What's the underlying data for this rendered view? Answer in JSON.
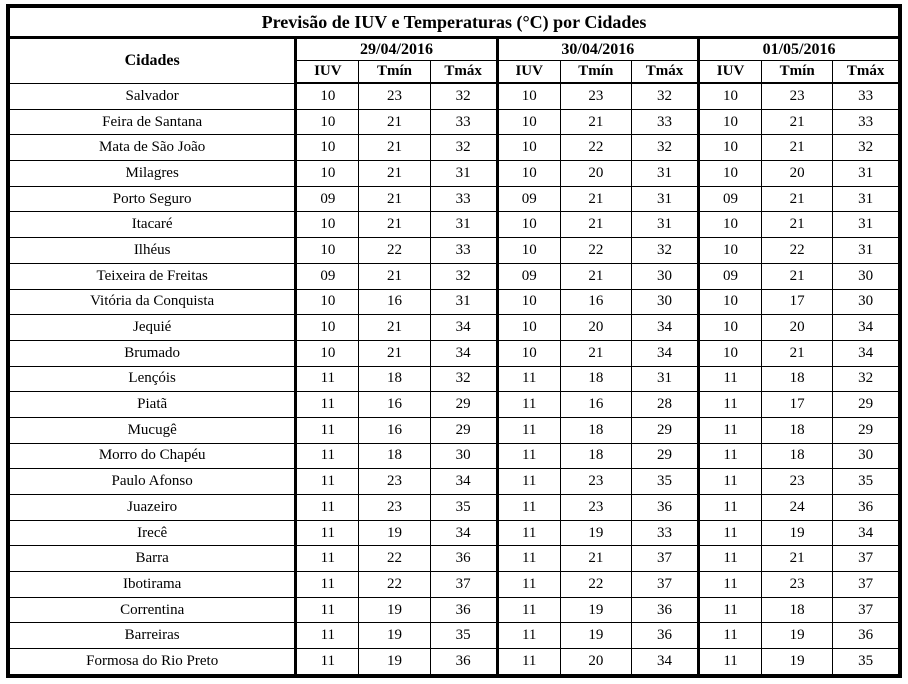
{
  "title": "Previsão de IUV e Temperaturas (°C) por Cidades",
  "columns": {
    "cidades": "Cidades",
    "dates": [
      "29/04/2016",
      "30/04/2016",
      "01/05/2016"
    ],
    "sub": [
      "IUV",
      "Tmín",
      "Tmáx"
    ]
  },
  "rows": [
    {
      "city": "Salvador",
      "values": [
        "10",
        "23",
        "32",
        "10",
        "23",
        "32",
        "10",
        "23",
        "33"
      ]
    },
    {
      "city": "Feira de Santana",
      "values": [
        "10",
        "21",
        "33",
        "10",
        "21",
        "33",
        "10",
        "21",
        "33"
      ]
    },
    {
      "city": "Mata de São João",
      "values": [
        "10",
        "21",
        "32",
        "10",
        "22",
        "32",
        "10",
        "21",
        "32"
      ]
    },
    {
      "city": "Milagres",
      "values": [
        "10",
        "21",
        "31",
        "10",
        "20",
        "31",
        "10",
        "20",
        "31"
      ]
    },
    {
      "city": "Porto Seguro",
      "values": [
        "09",
        "21",
        "33",
        "09",
        "21",
        "31",
        "09",
        "21",
        "31"
      ]
    },
    {
      "city": "Itacaré",
      "values": [
        "10",
        "21",
        "31",
        "10",
        "21",
        "31",
        "10",
        "21",
        "31"
      ]
    },
    {
      "city": "Ilhéus",
      "values": [
        "10",
        "22",
        "33",
        "10",
        "22",
        "32",
        "10",
        "22",
        "31"
      ]
    },
    {
      "city": "Teixeira de Freitas",
      "values": [
        "09",
        "21",
        "32",
        "09",
        "21",
        "30",
        "09",
        "21",
        "30"
      ]
    },
    {
      "city": "Vitória da Conquista",
      "values": [
        "10",
        "16",
        "31",
        "10",
        "16",
        "30",
        "10",
        "17",
        "30"
      ]
    },
    {
      "city": "Jequié",
      "values": [
        "10",
        "21",
        "34",
        "10",
        "20",
        "34",
        "10",
        "20",
        "34"
      ]
    },
    {
      "city": "Brumado",
      "values": [
        "10",
        "21",
        "34",
        "10",
        "21",
        "34",
        "10",
        "21",
        "34"
      ]
    },
    {
      "city": "Lençóis",
      "values": [
        "11",
        "18",
        "32",
        "11",
        "18",
        "31",
        "11",
        "18",
        "32"
      ]
    },
    {
      "city": "Piatã",
      "values": [
        "11",
        "16",
        "29",
        "11",
        "16",
        "28",
        "11",
        "17",
        "29"
      ]
    },
    {
      "city": "Mucugê",
      "values": [
        "11",
        "16",
        "29",
        "11",
        "18",
        "29",
        "11",
        "18",
        "29"
      ]
    },
    {
      "city": "Morro do Chapéu",
      "values": [
        "11",
        "18",
        "30",
        "11",
        "18",
        "29",
        "11",
        "18",
        "30"
      ]
    },
    {
      "city": "Paulo Afonso",
      "values": [
        "11",
        "23",
        "34",
        "11",
        "23",
        "35",
        "11",
        "23",
        "35"
      ]
    },
    {
      "city": "Juazeiro",
      "values": [
        "11",
        "23",
        "35",
        "11",
        "23",
        "36",
        "11",
        "24",
        "36"
      ]
    },
    {
      "city": "Irecê",
      "values": [
        "11",
        "19",
        "34",
        "11",
        "19",
        "33",
        "11",
        "19",
        "34"
      ]
    },
    {
      "city": "Barra",
      "values": [
        "11",
        "22",
        "36",
        "11",
        "21",
        "37",
        "11",
        "21",
        "37"
      ]
    },
    {
      "city": "Ibotirama",
      "values": [
        "11",
        "22",
        "37",
        "11",
        "22",
        "37",
        "11",
        "23",
        "37"
      ]
    },
    {
      "city": "Correntina",
      "values": [
        "11",
        "19",
        "36",
        "11",
        "19",
        "36",
        "11",
        "18",
        "37"
      ]
    },
    {
      "city": "Barreiras",
      "values": [
        "11",
        "19",
        "35",
        "11",
        "19",
        "36",
        "11",
        "19",
        "36"
      ]
    },
    {
      "city": "Formosa do Rio Preto",
      "values": [
        "11",
        "19",
        "36",
        "11",
        "20",
        "34",
        "11",
        "19",
        "35"
      ]
    }
  ]
}
